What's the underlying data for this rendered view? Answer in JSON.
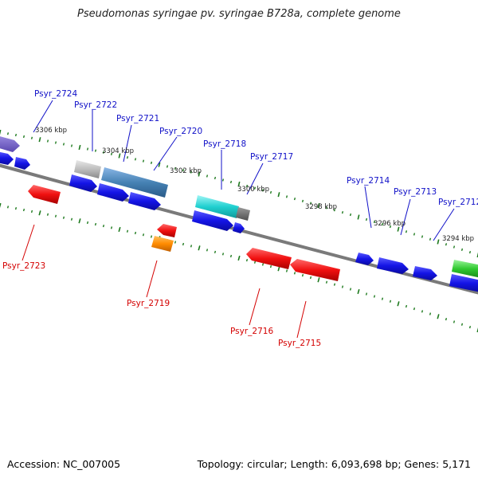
{
  "title": "Pseudomonas syringae pv. syringae B728a, complete genome",
  "footer": {
    "accession": "Accession: NC_007005",
    "topology": "Topology: circular; Length: 6,093,698 bp; Genes: 5,171"
  },
  "colors": {
    "backbone": "#7a7a7a",
    "tick": "#1e7a1e",
    "forward_label": "#1010c8",
    "reverse_label": "#d40000"
  },
  "kbp_markers": [
    "3306 kbp",
    "3304 kbp",
    "3302 kbp",
    "3300 kbp",
    "3298 kbp",
    "3296 kbp",
    "3294 kbp"
  ],
  "forward_labels": [
    "Psyr_2724",
    "Psyr_2722",
    "Psyr_2721",
    "Psyr_2720",
    "Psyr_2718",
    "Psyr_2717",
    "Psyr_2714",
    "Psyr_2713",
    "Psyr_2712"
  ],
  "reverse_labels": [
    "Psyr_2723",
    "Psyr_2719",
    "Psyr_2716",
    "Psyr_2715"
  ]
}
